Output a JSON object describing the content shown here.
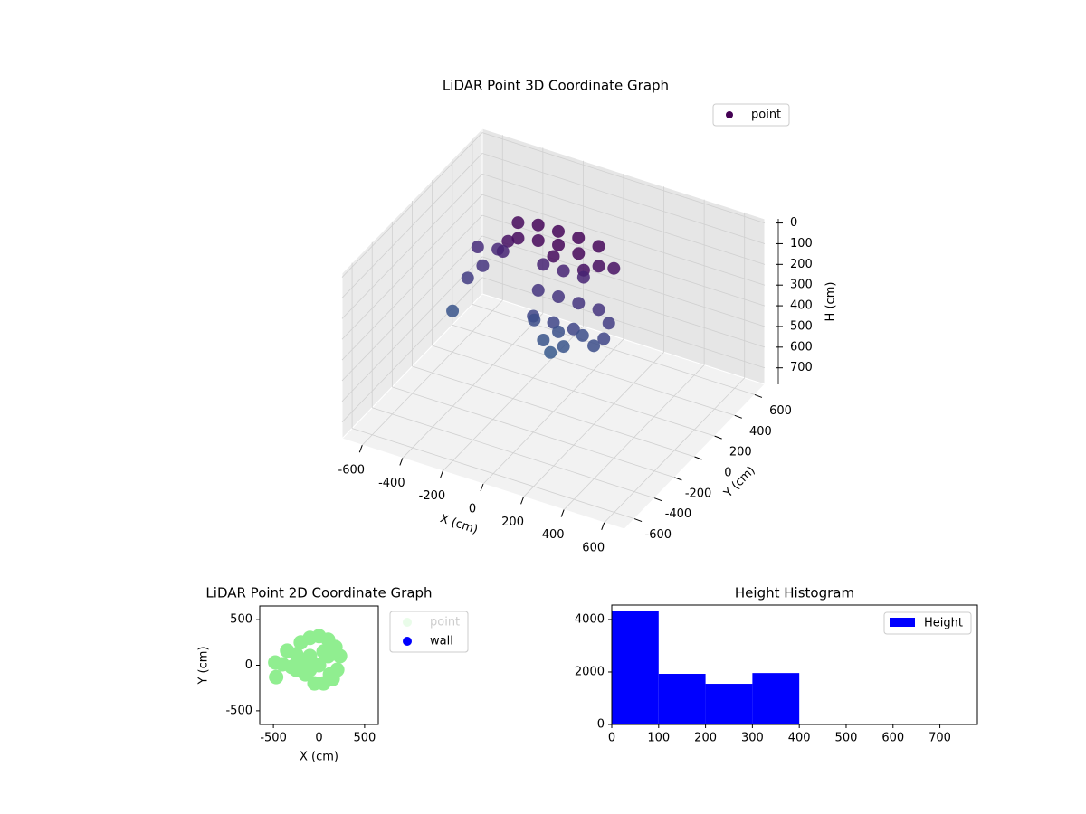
{
  "chart_data": [
    {
      "type": "scatter3d",
      "title": "LiDAR Point 3D Coordinate Graph",
      "xlabel": "X (cm)",
      "ylabel": "Y (cm)",
      "zlabel": "H (cm)",
      "xlim": [
        -700,
        700
      ],
      "ylim": [
        -700,
        700
      ],
      "zlim": [
        -20,
        780
      ],
      "z_inverted": true,
      "xticks": [
        -600,
        -400,
        -200,
        0,
        200,
        400,
        600
      ],
      "yticks": [
        -600,
        -400,
        -200,
        0,
        200,
        400,
        600
      ],
      "zticks": [
        0,
        100,
        200,
        300,
        400,
        500,
        600,
        700
      ],
      "legend": "upper right",
      "grid": true,
      "series": [
        {
          "name": "point",
          "colormap": "viridis",
          "x": [
            -250,
            -150,
            -50,
            50,
            150,
            -200,
            -100,
            0,
            100,
            200,
            250,
            -250,
            0,
            150,
            -100,
            0,
            100,
            -100,
            0,
            100,
            -100,
            0,
            100,
            -50,
            50,
            0,
            -120,
            120,
            0,
            200,
            250,
            250,
            200,
            -500,
            -400,
            -450,
            -350,
            -450,
            -300
          ],
          "y": [
            150,
            150,
            150,
            150,
            150,
            50,
            50,
            50,
            50,
            50,
            100,
            50,
            0,
            0,
            100,
            100,
            100,
            50,
            50,
            50,
            0,
            0,
            0,
            0,
            0,
            50,
            50,
            50,
            -30,
            50,
            50,
            0,
            0,
            0,
            100,
            150,
            150,
            50,
            100
          ],
          "z": [
            20,
            0,
            0,
            0,
            10,
            30,
            10,
            0,
            10,
            40,
            60,
            60,
            30,
            50,
            150,
            150,
            150,
            250,
            250,
            250,
            350,
            350,
            350,
            450,
            450,
            420,
            400,
            400,
            480,
            250,
            300,
            350,
            400,
            450,
            250,
            200,
            180,
            300,
            150
          ]
        }
      ]
    },
    {
      "type": "scatter",
      "title": "LiDAR Point 2D Coordinate Graph",
      "xlabel": "X (cm)",
      "ylabel": "Y (cm)",
      "xlim": [
        -650,
        650
      ],
      "ylim": [
        -650,
        650
      ],
      "xticks": [
        -500,
        0,
        500
      ],
      "yticks": [
        -500,
        0,
        500
      ],
      "legend": "outside right",
      "series": [
        {
          "name": "point",
          "color": "#90ee90",
          "x": [
            -480,
            -470,
            -400,
            -350,
            -300,
            -250,
            -200,
            -150,
            -100,
            0,
            100,
            180,
            230,
            200,
            150,
            50,
            -50,
            0,
            -100,
            100,
            -100,
            50,
            -200,
            120,
            -250
          ],
          "y": [
            30,
            -130,
            10,
            160,
            -20,
            120,
            250,
            -100,
            300,
            320,
            280,
            200,
            100,
            -50,
            -150,
            -200,
            -200,
            0,
            100,
            100,
            -50,
            150,
            50,
            -100,
            -50
          ]
        },
        {
          "name": "wall",
          "color": "#0000ff",
          "x": [],
          "y": []
        }
      ]
    },
    {
      "type": "histogram",
      "title": "Height Histogram",
      "bins": [
        0,
        100,
        200,
        300,
        400
      ],
      "xlim": [
        0,
        780
      ],
      "ylim": [
        0,
        4550
      ],
      "xticks": [
        0,
        100,
        200,
        300,
        400,
        500,
        600,
        700
      ],
      "yticks": [
        0,
        2000,
        4000
      ],
      "legend": "upper right",
      "series": [
        {
          "name": "Height",
          "color": "#0000ff",
          "values": [
            4340,
            1930,
            1550,
            1960
          ]
        }
      ]
    }
  ]
}
